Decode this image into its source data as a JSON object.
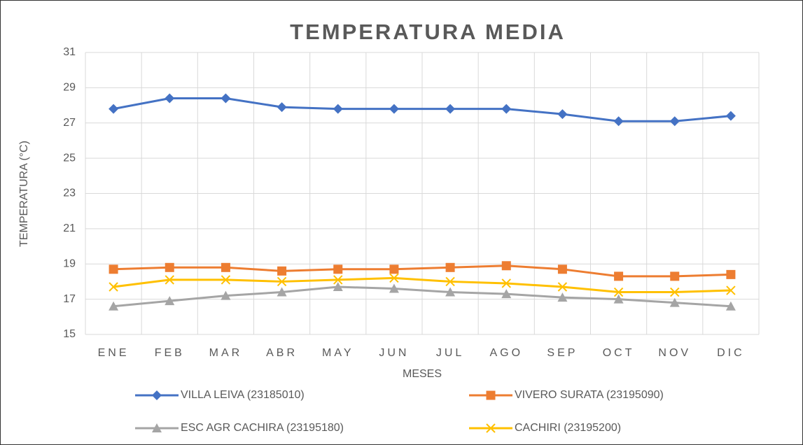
{
  "chart_data": {
    "type": "line",
    "title": "TEMPERATURA MEDIA",
    "x_label": "MESES",
    "y_label": "TEMPERATURA (°C)",
    "categories": [
      "ENE",
      "FEB",
      "MAR",
      "ABR",
      "MAY",
      "JUN",
      "JUL",
      "AGO",
      "SEP",
      "OCT",
      "NOV",
      "DIC"
    ],
    "series": [
      {
        "name": "VILLA LEIVA (23185010)",
        "color": "#4472c4",
        "marker": "diamond",
        "values": [
          27.8,
          28.4,
          28.4,
          27.9,
          27.8,
          27.8,
          27.8,
          27.8,
          27.5,
          27.1,
          27.1,
          27.4
        ]
      },
      {
        "name": "VIVERO SURATA (23195090)",
        "color": "#ed7d31",
        "marker": "square",
        "values": [
          18.7,
          18.8,
          18.8,
          18.6,
          18.7,
          18.7,
          18.8,
          18.9,
          18.7,
          18.3,
          18.3,
          18.4
        ]
      },
      {
        "name": "ESC AGR CACHIRA (23195180)",
        "color": "#a5a5a5",
        "marker": "triangle",
        "values": [
          16.6,
          16.9,
          17.2,
          17.4,
          17.7,
          17.6,
          17.4,
          17.3,
          17.1,
          17.0,
          16.8,
          16.6
        ]
      },
      {
        "name": "CACHIRI (23195200)",
        "color": "#ffc000",
        "marker": "x",
        "values": [
          17.7,
          18.1,
          18.1,
          18.0,
          18.1,
          18.2,
          18.0,
          17.9,
          17.7,
          17.4,
          17.4,
          17.5
        ]
      }
    ],
    "ylim": [
      15,
      31
    ],
    "yticks": [
      15,
      17,
      19,
      21,
      23,
      25,
      27,
      29,
      31
    ],
    "grid": true,
    "legend": "bottom"
  }
}
